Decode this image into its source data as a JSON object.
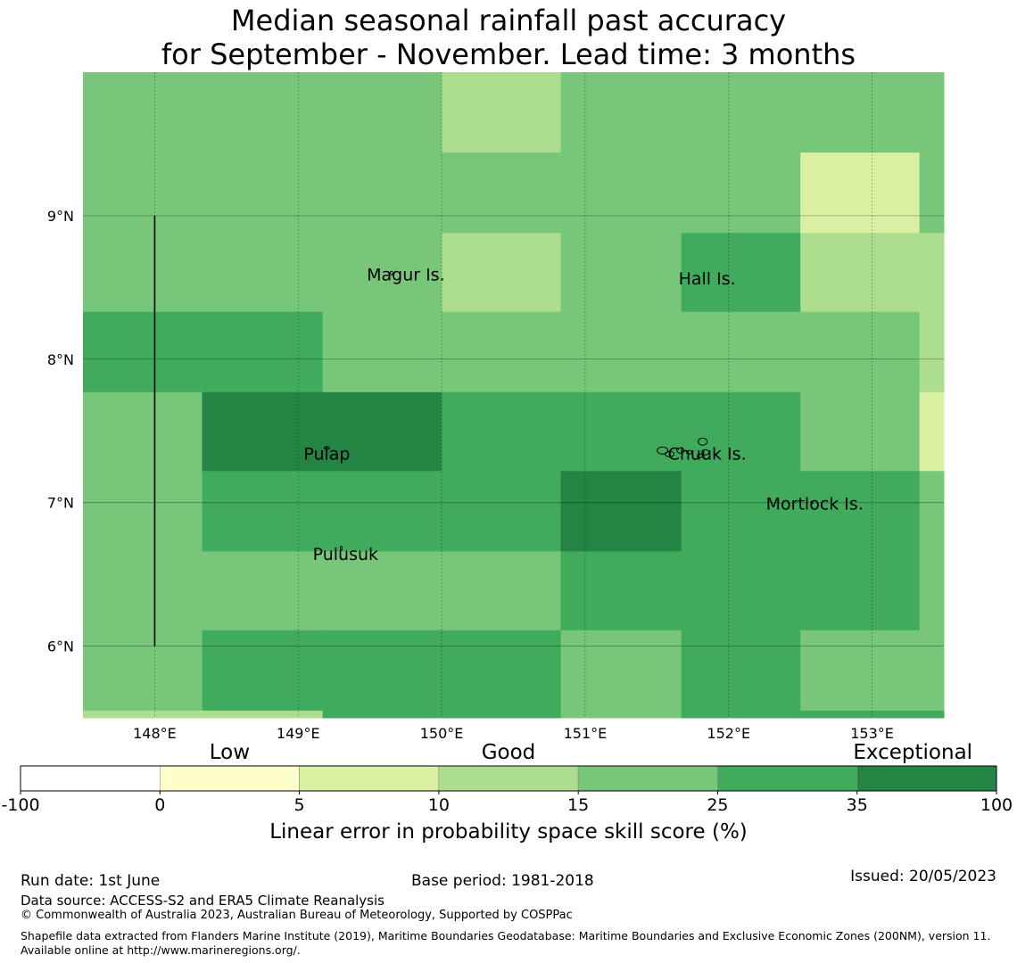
{
  "title": {
    "line1": "Median seasonal rainfall past accuracy",
    "line2": "for September - November. Lead time: 3 months"
  },
  "map": {
    "lon_ticks": [
      {
        "value": 148,
        "label": "148°E"
      },
      {
        "value": 149,
        "label": "149°E"
      },
      {
        "value": 150,
        "label": "150°E"
      },
      {
        "value": 151,
        "label": "151°E"
      },
      {
        "value": 152,
        "label": "152°E"
      },
      {
        "value": 153,
        "label": "153°E"
      }
    ],
    "lat_ticks": [
      {
        "value": 9,
        "label": "9°N"
      },
      {
        "value": 8,
        "label": "8°N"
      },
      {
        "value": 7,
        "label": "7°N"
      },
      {
        "value": 6,
        "label": "6°N"
      }
    ],
    "lon_range": [
      147.5,
      153.5
    ],
    "lat_range": [
      5.5,
      10.0
    ],
    "cell_lon_edges": [
      147.5,
      148.33,
      149.17,
      150.0,
      150.83,
      151.67,
      152.5,
      153.33,
      153.5
    ],
    "cell_lat_edges": [
      10.0,
      9.44,
      8.88,
      8.33,
      7.77,
      7.22,
      6.66,
      6.11,
      5.55,
      5.5
    ],
    "cell_categories": [
      [
        4,
        4,
        4,
        3,
        4,
        4,
        4,
        4
      ],
      [
        4,
        4,
        4,
        4,
        4,
        4,
        2,
        4
      ],
      [
        4,
        4,
        4,
        3,
        4,
        5,
        3,
        3
      ],
      [
        5,
        5,
        4,
        4,
        4,
        4,
        4,
        3
      ],
      [
        4,
        6,
        6,
        5,
        5,
        5,
        4,
        2
      ],
      [
        4,
        5,
        5,
        5,
        6,
        5,
        5,
        4
      ],
      [
        4,
        4,
        4,
        4,
        5,
        5,
        5,
        4
      ],
      [
        4,
        5,
        5,
        5,
        4,
        5,
        4,
        4
      ],
      [
        3,
        3,
        5,
        5,
        4,
        5,
        5,
        5
      ]
    ],
    "places": [
      {
        "name": "Magur Is.",
        "lon": 149.75,
        "lat": 8.55
      },
      {
        "name": "Hall Is.",
        "lon": 151.85,
        "lat": 8.52
      },
      {
        "name": "Pulap",
        "lon": 149.2,
        "lat": 7.3
      },
      {
        "name": "Chuuk Is.",
        "lon": 151.85,
        "lat": 7.3
      },
      {
        "name": "Mortlock Is.",
        "lon": 152.6,
        "lat": 6.95
      },
      {
        "name": "Pulusuk",
        "lon": 149.33,
        "lat": 6.6
      }
    ],
    "boundary_line": {
      "lon": 148.0,
      "lat_from": 6.0,
      "lat_to": 9.0
    }
  },
  "colorbar": {
    "categories": [
      {
        "label": "Low",
        "at_index": 1.5
      },
      {
        "label": "Good",
        "at_index": 3.5
      },
      {
        "label": "Exceptional",
        "at_index": 6.4
      }
    ],
    "tick_labels": [
      "-100",
      "0",
      "5",
      "10",
      "15",
      "25",
      "35",
      "100"
    ],
    "colors": [
      "#ffffff",
      "#ffffcc",
      "#d9f0a3",
      "#addd8e",
      "#78c679",
      "#41ab5d",
      "#238443"
    ],
    "label": "Linear error in probability space skill score (%)"
  },
  "footer": {
    "run_date": "Run date: 1st June",
    "base_period": "Base period: 1981-2018",
    "issued": "Issued: 20/05/2023",
    "data_source": "Data source: ACCESS-S2 and ERA5 Climate Reanalysis",
    "copyright": "© Commonwealth of Australia 2023, Australian Bureau of Meteorology, Supported by COSPPac",
    "shapefile": "Shapefile data extracted from Flanders Marine Institute (2019), Maritime Boundaries Geodatabase: Maritime Boundaries and Exclusive Economic Zones (200NM), version 11. Available online at http://www.marineregions.org/."
  }
}
